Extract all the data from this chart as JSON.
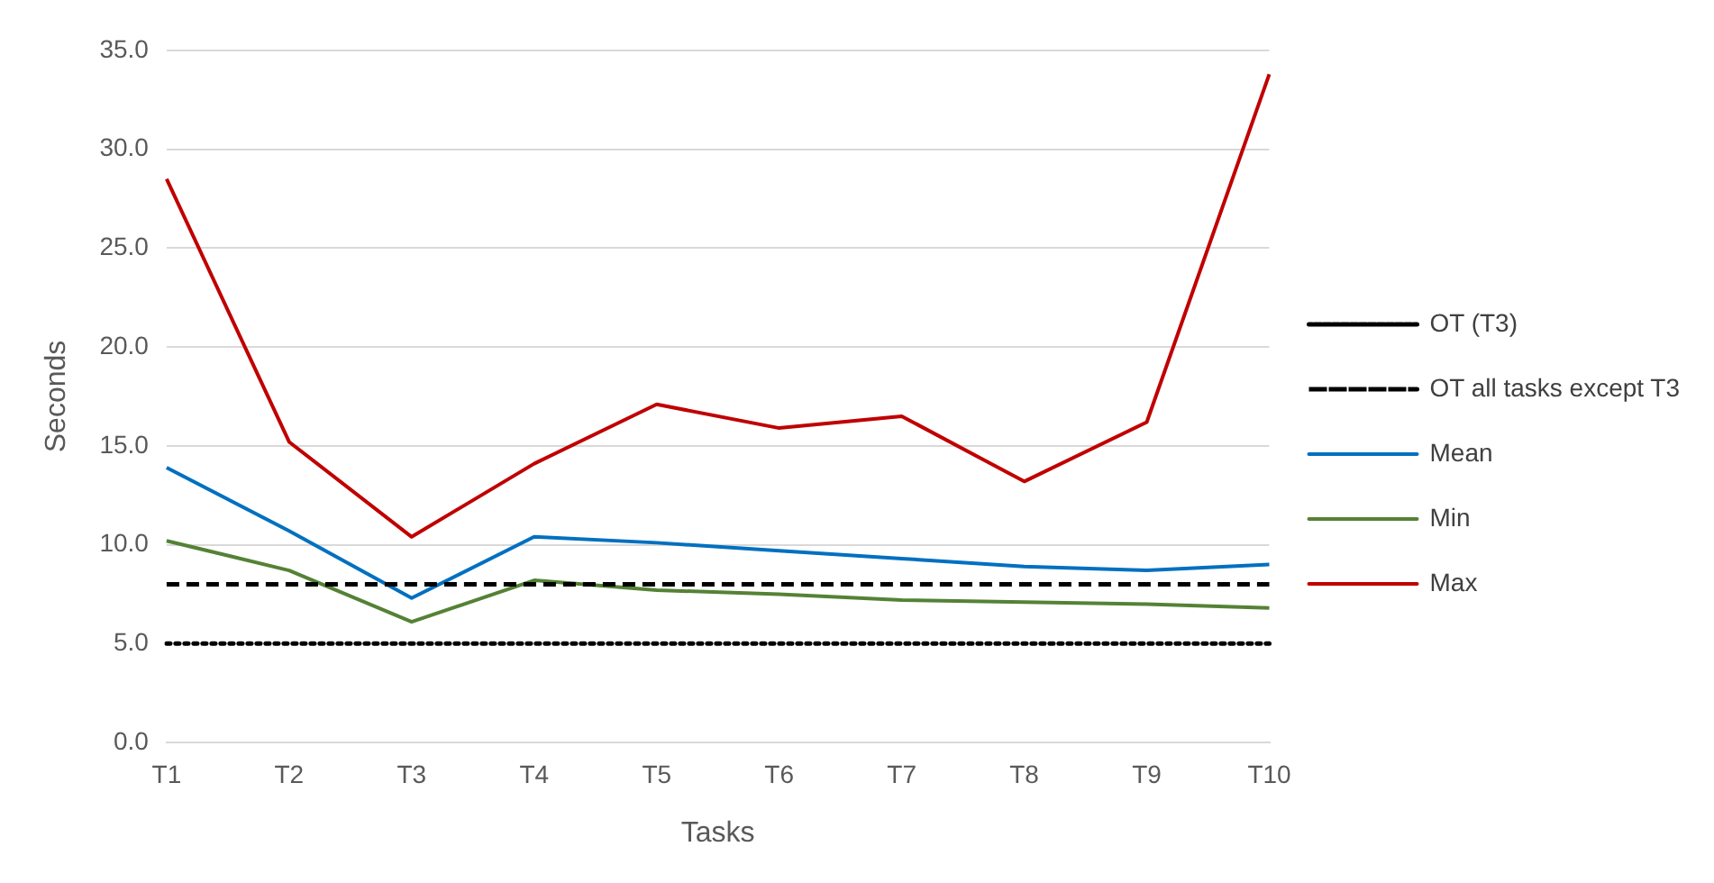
{
  "chart_data": {
    "type": "line",
    "xlabel": "Tasks",
    "ylabel": "Seconds",
    "categories": [
      "T1",
      "T2",
      "T3",
      "T4",
      "T5",
      "T6",
      "T7",
      "T8",
      "T9",
      "T10"
    ],
    "series": [
      {
        "name": "OT (T3)",
        "color": "#000000",
        "line_style": "dotted",
        "values": [
          5,
          5,
          5,
          5,
          5,
          5,
          5,
          5,
          5,
          5
        ]
      },
      {
        "name": "OT all tasks except T3",
        "color": "#000000",
        "line_style": "dashed",
        "values": [
          8,
          8,
          8,
          8,
          8,
          8,
          8,
          8,
          8,
          8
        ]
      },
      {
        "name": "Mean",
        "color": "#0070c0",
        "line_style": "solid",
        "values": [
          13.9,
          10.7,
          7.3,
          10.4,
          10.1,
          9.7,
          9.3,
          8.9,
          8.7,
          9.0
        ]
      },
      {
        "name": "Min",
        "color": "#548235",
        "line_style": "solid",
        "values": [
          10.2,
          8.7,
          6.1,
          8.2,
          7.7,
          7.5,
          7.2,
          7.1,
          7.0,
          6.8
        ]
      },
      {
        "name": "Max",
        "color": "#c00000",
        "line_style": "solid",
        "values": [
          28.5,
          15.2,
          10.4,
          14.1,
          17.1,
          15.9,
          16.5,
          13.2,
          16.2,
          33.8
        ]
      }
    ],
    "ylim": [
      0,
      35
    ],
    "yticks": [
      {
        "value": 0,
        "label": "0.0"
      },
      {
        "value": 5,
        "label": "5.0"
      },
      {
        "value": 10,
        "label": "10.0"
      },
      {
        "value": 15,
        "label": "15.0"
      },
      {
        "value": 20,
        "label": "20.0"
      },
      {
        "value": 25,
        "label": "25.0"
      },
      {
        "value": 30,
        "label": "30.0"
      },
      {
        "value": 35,
        "label": "35.0"
      }
    ],
    "grid": "y",
    "legend": "right",
    "marker": "none"
  }
}
